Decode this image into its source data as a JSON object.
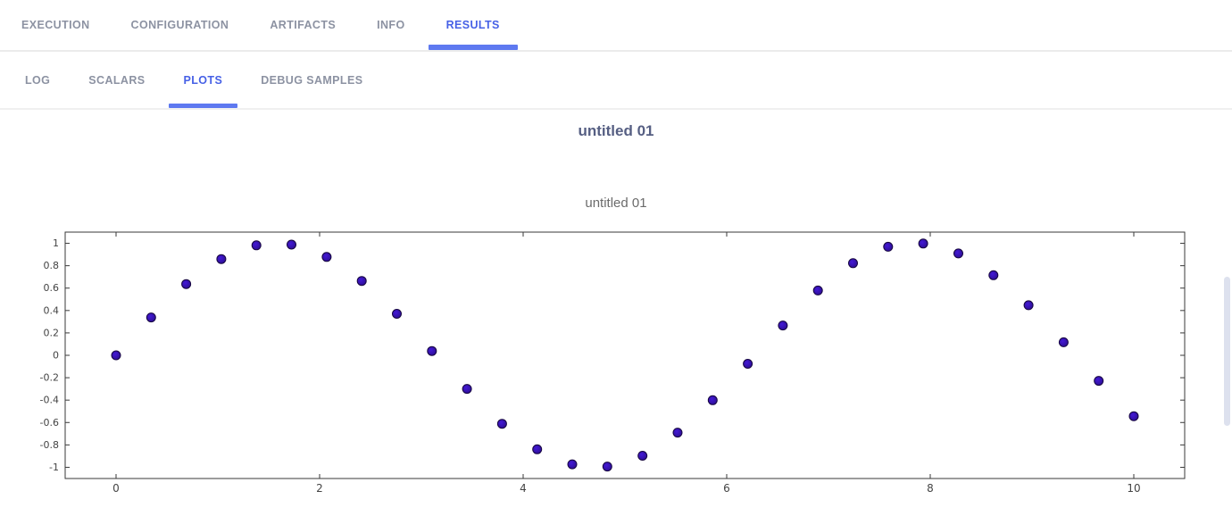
{
  "tabs_primary": {
    "items": [
      {
        "label": "EXECUTION",
        "active": false
      },
      {
        "label": "CONFIGURATION",
        "active": false
      },
      {
        "label": "ARTIFACTS",
        "active": false
      },
      {
        "label": "INFO",
        "active": false
      },
      {
        "label": "RESULTS",
        "active": true
      }
    ]
  },
  "tabs_secondary": {
    "items": [
      {
        "label": "LOG",
        "active": false
      },
      {
        "label": "SCALARS",
        "active": false
      },
      {
        "label": "PLOTS",
        "active": true
      },
      {
        "label": "DEBUG SAMPLES",
        "active": false
      }
    ]
  },
  "section": {
    "title": "untitled 01"
  },
  "chart_data": {
    "type": "scatter",
    "title": "untitled 01",
    "xlabel": "",
    "ylabel": "",
    "x": [
      0,
      0.3448,
      0.6897,
      1.0345,
      1.3793,
      1.7241,
      2.069,
      2.4138,
      2.7586,
      3.1034,
      3.4483,
      3.7931,
      4.1379,
      4.4828,
      4.8276,
      5.1724,
      5.5172,
      5.8621,
      6.2069,
      6.5517,
      6.8966,
      7.2414,
      7.5862,
      7.931,
      8.2759,
      8.6207,
      8.9655,
      9.3103,
      9.6552,
      10
    ],
    "y": [
      0,
      0.338,
      0.6362,
      0.8594,
      0.9817,
      0.9883,
      0.8781,
      0.6636,
      0.3706,
      0.0381,
      -0.2997,
      -0.6112,
      -0.8391,
      -0.9735,
      -0.9928,
      -0.8968,
      -0.6905,
      -0.4011,
      -0.076,
      0.2661,
      0.5784,
      0.8225,
      0.9691,
      0.9983,
      0.9096,
      0.7152,
      0.4472,
      0.1165,
      -0.228,
      -0.544
    ],
    "xlim": [
      -0.5,
      10.5
    ],
    "ylim": [
      -1.1,
      1.1
    ],
    "x_ticks": [
      0,
      2,
      4,
      6,
      8,
      10
    ],
    "y_ticks": [
      1,
      0.8,
      0.6,
      0.4,
      0.2,
      0,
      -0.2,
      -0.4,
      -0.6,
      -0.8,
      -1
    ],
    "grid": false,
    "legend": false,
    "marker": {
      "fill_center": "#4319d6",
      "fill_edge": "#2c0e8f",
      "stroke": "#160640",
      "radius": 5
    },
    "spine_color": "#3a3a3a"
  },
  "colors": {
    "tab_inactive": "#8c92a2",
    "tab_active": "#4761e6",
    "tab_underline": "#5e79f0",
    "section_title": "#565f83",
    "plot_title": "#6b6b6b",
    "scrollbar_thumb": "#dde1ee"
  }
}
